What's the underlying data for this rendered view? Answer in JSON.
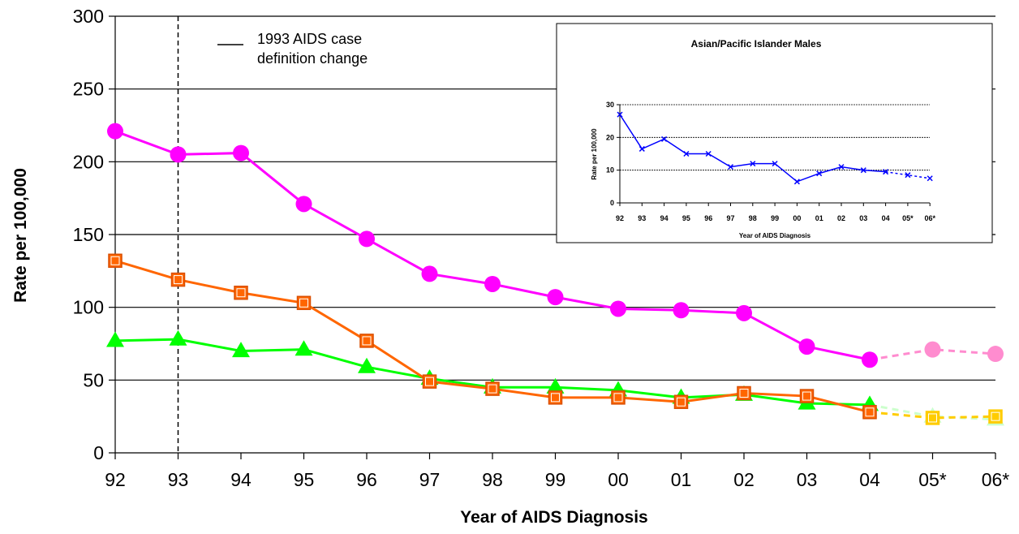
{
  "chart_data": [
    {
      "type": "line",
      "title": "",
      "xlabel": "Year of AIDS Diagnosis",
      "ylabel": "Rate per 100,000",
      "ylim": [
        0,
        300
      ],
      "yticks": [
        0,
        50,
        100,
        150,
        200,
        250,
        300
      ],
      "categories": [
        "92",
        "93",
        "94",
        "95",
        "96",
        "97",
        "98",
        "99",
        "00",
        "01",
        "02",
        "03",
        "04",
        "05*",
        "06*"
      ],
      "grid": true,
      "annotation": {
        "text_line1": "1993 AIDS case",
        "text_line2": "definition change",
        "at_category": "93"
      },
      "series": [
        {
          "name": "",
          "color": "#ff00ff",
          "projected_color": "#ff8ccf",
          "marker": "circle",
          "values": [
            221,
            205,
            206,
            171,
            147,
            123,
            116,
            107,
            99,
            98,
            96,
            73,
            64,
            71,
            68
          ]
        },
        {
          "name": "",
          "color": "#ff6600",
          "projected_color": "#ffcc00",
          "marker": "square",
          "values": [
            132,
            119,
            110,
            103,
            77,
            49,
            44,
            38,
            38,
            35,
            41,
            39,
            28,
            24,
            25
          ]
        },
        {
          "name": "",
          "color": "#00ff00",
          "projected_color": "#ccffcc",
          "marker": "triangle",
          "values": [
            77,
            78,
            70,
            71,
            59,
            51,
            45,
            45,
            43,
            38,
            40,
            34,
            33,
            25,
            23
          ]
        }
      ],
      "projected_from_index": 12
    },
    {
      "type": "line",
      "title": "Asian/Pacific Islander Males",
      "xlabel": "Year of AIDS Diagnosis",
      "ylabel": "Rate per 100,000",
      "ylim": [
        0,
        30
      ],
      "yticks": [
        0,
        10,
        20,
        30
      ],
      "categories": [
        "92",
        "93",
        "94",
        "95",
        "96",
        "97",
        "98",
        "99",
        "00",
        "01",
        "02",
        "03",
        "04",
        "05*",
        "06*"
      ],
      "grid": true,
      "series": [
        {
          "name": "",
          "color": "#0000ff",
          "marker": "x",
          "values": [
            27,
            16.5,
            19.5,
            15,
            15,
            11,
            12,
            12,
            6.5,
            9,
            11,
            10,
            9.5,
            8.5,
            7.5
          ]
        }
      ],
      "projected_from_index": 12
    }
  ]
}
